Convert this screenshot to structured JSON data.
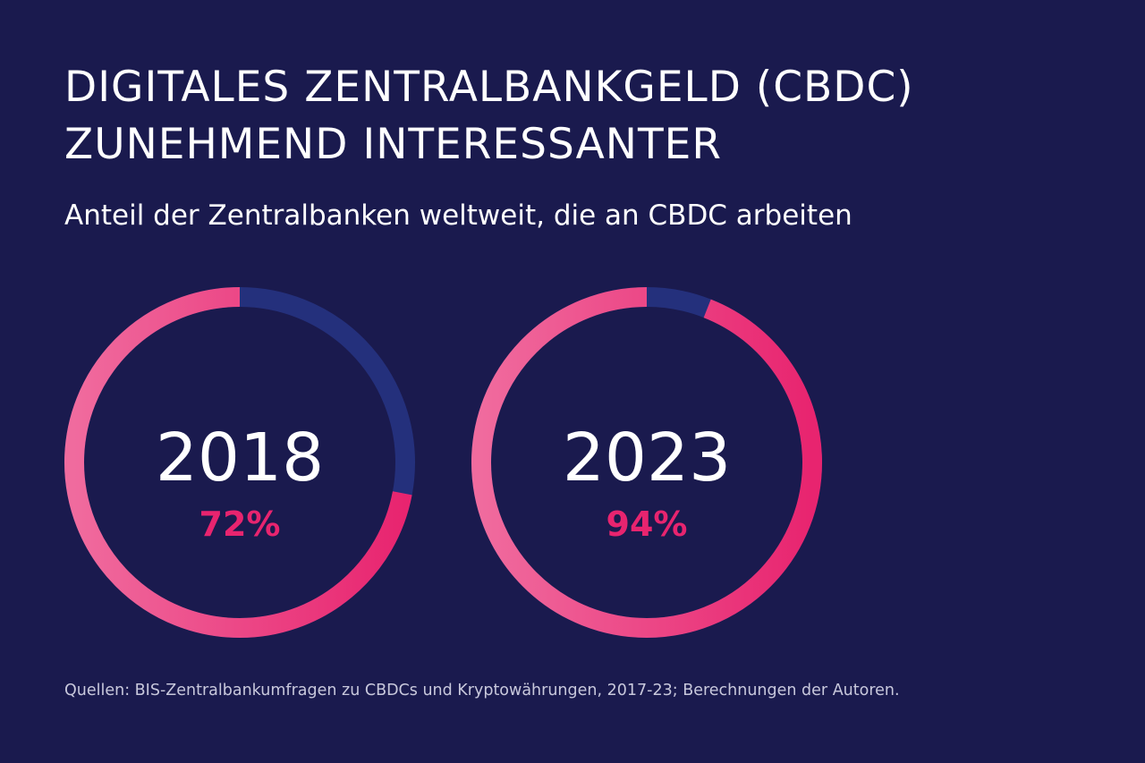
{
  "header": {
    "title_line1": "DIGITALES ZENTRALBANKGELD (CBDC)",
    "title_line2": "ZUNEHMEND INTERESSANTER",
    "subtitle": "Anteil der Zentralbanken weltweit, die an CBDC arbeiten"
  },
  "chart_data": {
    "type": "pie",
    "charts": [
      {
        "category": "2018",
        "value": 72,
        "label": "72%"
      },
      {
        "category": "2023",
        "value": 94,
        "label": "94%"
      }
    ],
    "max": 100
  },
  "colors": {
    "background": "#1a1a4e",
    "share": "#e8246f",
    "share_light": "#f06b9e",
    "remainder": "#24307c",
    "text": "#ffffff",
    "percent_text": "#e8246f"
  },
  "footer": {
    "source": "Quellen: BIS-Zentralbankumfragen zu CBDCs und Kryptowährungen, 2017-23; Berechnungen der Autoren."
  }
}
